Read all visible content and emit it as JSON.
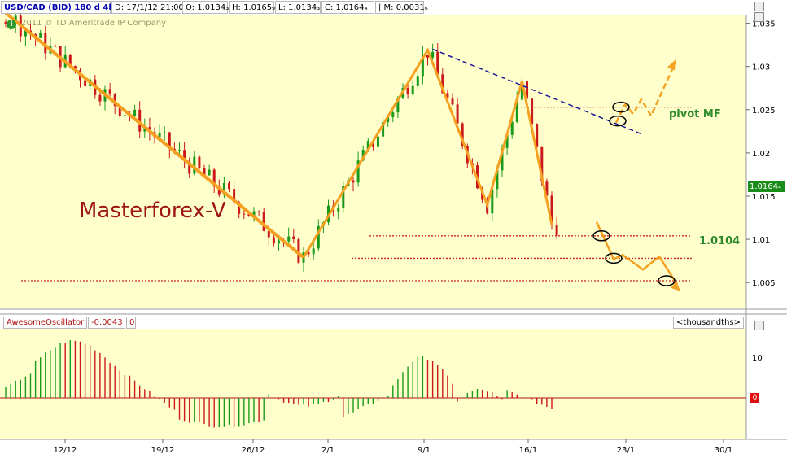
{
  "header": {
    "symbol": "USD/CAD (BID) 180 d 4h",
    "date": "D: 17/1/12 21:00",
    "open": "O: 1.0134₃",
    "high": "H: 1.0165₉",
    "low": "L: 1.0134₃",
    "close": "C: 1.0164₄",
    "change": "| M: 0.0031₆"
  },
  "watermark": "2011 © TD Ameritrade IP Company",
  "brand": "Masterforex-V",
  "annotations": {
    "pivot": "pivot MF",
    "level": "1.0104"
  },
  "last_price_tag": "1.0164₄",
  "indicator": {
    "name": "AwesomeOscillator",
    "value": "-0.0043",
    "extra": "0",
    "units": "<thousandths>",
    "zero_tag": "0"
  },
  "colors": {
    "background": "#ffffcc",
    "up": "#1a9a1a",
    "down": "#cc1a1a",
    "pattern": "#f5a020",
    "trend": "#1a1a9a",
    "level": "#cc2222"
  },
  "chart_data": [
    {
      "type": "candlestick",
      "title": "USD/CAD (BID) 180 d 4h",
      "x": [
        "12/12",
        "19/12",
        "26/12",
        "2/1",
        "9/1",
        "16/1",
        "23/1",
        "30/1"
      ],
      "ylim": [
        1.002,
        1.036
      ],
      "y_ticks": [
        "1.035",
        "1.03",
        "1.025",
        "1.02",
        "1.015",
        "1.01",
        "1.005"
      ],
      "levels": [
        {
          "label": "pivot MF",
          "value": 1.0253
        },
        {
          "label": "1.0104",
          "value": 1.0104
        },
        {
          "label": "",
          "value": 1.0078
        },
        {
          "label": "",
          "value": 1.0052
        }
      ],
      "zigzag": [
        {
          "bar": 0,
          "value": 1.0362
        },
        {
          "bar": 60,
          "value": 1.0079
        },
        {
          "bar": 85,
          "value": 1.0319
        },
        {
          "bar": 97,
          "value": 1.014
        },
        {
          "bar": 104,
          "value": 1.0283
        },
        {
          "bar": 110,
          "value": 1.0117
        }
      ],
      "trendline": [
        {
          "bar": 86,
          "value": 1.032
        },
        {
          "bar": 128,
          "value": 1.0222
        }
      ],
      "projections_up": [
        1.0235,
        1.0256,
        1.0245,
        1.0262,
        1.0243,
        1.0305
      ],
      "projections_down": [
        1.012,
        1.0102,
        1.0077,
        1.0082,
        1.0065,
        1.008,
        1.0048
      ]
    },
    {
      "type": "bar",
      "title": "AwesomeOscillator",
      "ylabel": "<thousandths>",
      "y_ticks": [
        "10",
        "0"
      ],
      "ylim": [
        -8,
        14
      ]
    }
  ]
}
